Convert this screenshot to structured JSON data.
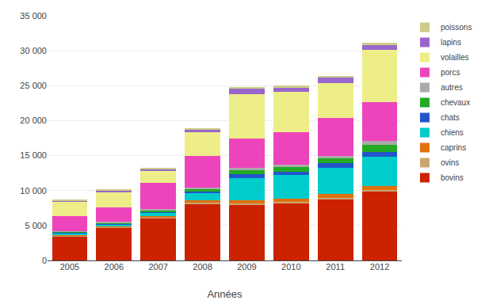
{
  "chart_data": {
    "type": "bar",
    "stacked": true,
    "xlabel": "Années",
    "categories": [
      "2005",
      "2006",
      "2007",
      "2008",
      "2009",
      "2010",
      "2011",
      "2012"
    ],
    "series": [
      {
        "name": "bovins",
        "color": "#cc2200",
        "values": [
          3500,
          4700,
          6100,
          8100,
          8000,
          8200,
          8800,
          9800
        ]
      },
      {
        "name": "ovins",
        "color": "#c8a870",
        "values": [
          100,
          100,
          100,
          200,
          200,
          200,
          200,
          300
        ]
      },
      {
        "name": "caprins",
        "color": "#e07010",
        "values": [
          100,
          100,
          100,
          300,
          400,
          400,
          500,
          500
        ]
      },
      {
        "name": "chiens",
        "color": "#00cccc",
        "values": [
          200,
          300,
          500,
          1000,
          3200,
          3400,
          3800,
          4200
        ]
      },
      {
        "name": "chats",
        "color": "#2255cc",
        "values": [
          100,
          100,
          200,
          300,
          500,
          500,
          600,
          700
        ]
      },
      {
        "name": "chevaux",
        "color": "#22aa22",
        "values": [
          100,
          100,
          200,
          300,
          600,
          700,
          700,
          1000
        ]
      },
      {
        "name": "autres",
        "color": "#aaaaaa",
        "values": [
          100,
          100,
          200,
          200,
          300,
          300,
          300,
          600
        ]
      },
      {
        "name": "porcs",
        "color": "#ee44bb",
        "values": [
          2200,
          2100,
          3700,
          4500,
          4300,
          4600,
          5500,
          5500
        ]
      },
      {
        "name": "volailles",
        "color": "#eeee88",
        "values": [
          2000,
          2200,
          1800,
          3400,
          6300,
          5800,
          5000,
          7500
        ]
      },
      {
        "name": "lapins",
        "color": "#9966cc",
        "values": [
          200,
          200,
          200,
          500,
          800,
          700,
          800,
          800
        ]
      },
      {
        "name": "poissons",
        "color": "#cccc88",
        "values": [
          100,
          100,
          100,
          100,
          200,
          200,
          200,
          200
        ]
      }
    ],
    "ylim": [
      0,
      35000
    ],
    "yticks": [
      0,
      {
        "value": 5000,
        "label": "5 000"
      },
      {
        "value": 10000,
        "label": "10 000"
      },
      {
        "value": 15000,
        "label": "15 000"
      },
      {
        "value": 20000,
        "label": "20 000"
      },
      {
        "value": 25000,
        "label": "25 000"
      },
      {
        "value": 30000,
        "label": "30 000"
      },
      {
        "value": 35000,
        "label": "35 000"
      }
    ],
    "grid": true,
    "legend": "right"
  }
}
